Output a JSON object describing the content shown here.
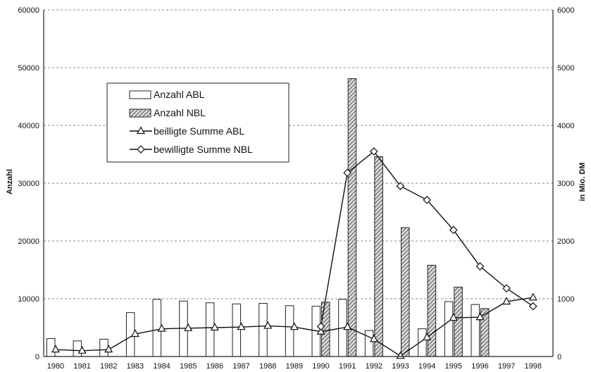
{
  "chart_data": {
    "type": "bar",
    "title": "",
    "xlabel": "",
    "ylabel_left": "Anzahl",
    "ylabel_right": "in Mio. DM",
    "ylim_left": [
      0,
      60000
    ],
    "ylim_right": [
      0,
      6000
    ],
    "yticks_left": [
      "0",
      "10000",
      "20000",
      "30000",
      "40000",
      "50000",
      "60000"
    ],
    "yticks_right": [
      "0",
      "1000",
      "2000",
      "3000",
      "4000",
      "5000",
      "6000"
    ],
    "grid": true,
    "legend_position": "upper-left-center",
    "categories": [
      "1980",
      "1981",
      "1982",
      "1983",
      "1984",
      "1985",
      "1986",
      "1987",
      "1988",
      "1989",
      "1990",
      "1991",
      "1992",
      "1993",
      "1994",
      "1995",
      "1996",
      "1997",
      "1998"
    ],
    "series": [
      {
        "name": "Anzahl ABL",
        "kind": "bar",
        "axis": "left",
        "style": "white",
        "values": [
          3100,
          2700,
          3000,
          7600,
          9900,
          9600,
          9300,
          9100,
          9200,
          8800,
          8700,
          9900,
          4500,
          null,
          4800,
          9500,
          9000,
          null,
          null
        ]
      },
      {
        "name": "Anzahl NBL",
        "kind": "bar",
        "axis": "left",
        "style": "hatched",
        "values": [
          null,
          null,
          null,
          null,
          null,
          null,
          null,
          null,
          null,
          null,
          9400,
          48100,
          34600,
          22300,
          15800,
          12000,
          8300,
          null,
          null
        ]
      },
      {
        "name": "beilligte Summe ABL",
        "kind": "line",
        "axis": "right",
        "marker": "triangle",
        "values": [
          120,
          100,
          120,
          390,
          480,
          490,
          500,
          510,
          530,
          510,
          430,
          510,
          300,
          10,
          330,
          670,
          680,
          950,
          1020
        ]
      },
      {
        "name": "bewilligte Summe NBL",
        "kind": "line",
        "axis": "right",
        "marker": "diamond",
        "values": [
          null,
          null,
          null,
          null,
          null,
          null,
          null,
          null,
          null,
          null,
          520,
          3180,
          3550,
          2950,
          2710,
          2190,
          1560,
          1180,
          870
        ]
      }
    ]
  }
}
